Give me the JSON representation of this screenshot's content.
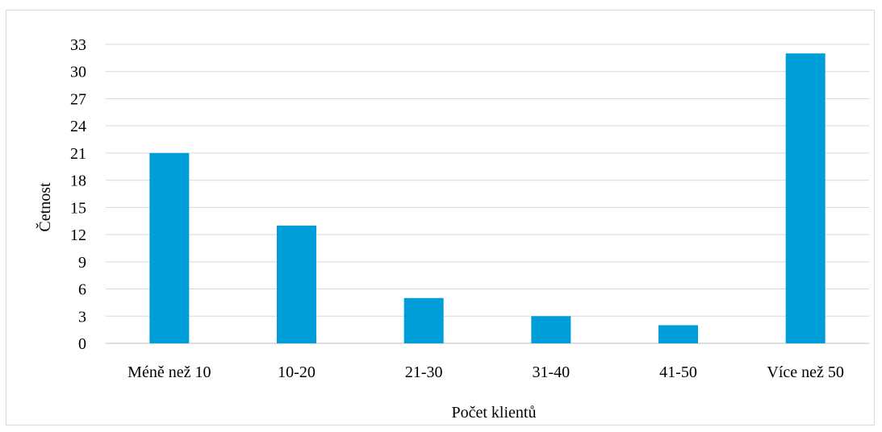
{
  "chart_data": {
    "type": "bar",
    "categories": [
      "Méně než 10",
      "10-20",
      "21-30",
      "31-40",
      "41-50",
      "Více než 50"
    ],
    "values": [
      21,
      13,
      5,
      3,
      2,
      32
    ],
    "title": "",
    "xlabel": "Počet klientů",
    "ylabel": "Četnost",
    "ylim": [
      0,
      33
    ],
    "yticks": [
      0,
      3,
      6,
      9,
      12,
      15,
      18,
      21,
      24,
      27,
      30,
      33
    ],
    "grid": true,
    "legend": "none",
    "colors": {
      "bar": "#009ED8",
      "grid": "#D9D9D9",
      "axis": "#BFBFBF"
    }
  }
}
